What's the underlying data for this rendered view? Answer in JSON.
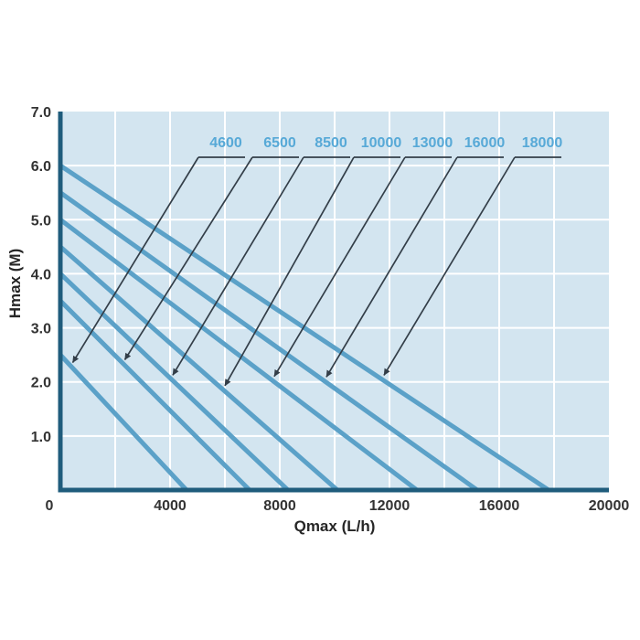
{
  "page": {
    "background": "#ffffff"
  },
  "chart_data": {
    "type": "line",
    "title": "",
    "xlabel": "Qmax (L/h)",
    "ylabel": "Hmax (M)",
    "xlim": [
      0,
      20000
    ],
    "ylim": [
      0,
      7
    ],
    "grid": {
      "x_step": 2000,
      "y_step": 1,
      "color": "#ffffff",
      "visible": true
    },
    "legend_position": "labels-with-arrows-above-curves",
    "x_ticks": [
      {
        "value": 0,
        "label": "0"
      },
      {
        "value": 4000,
        "label": "4000"
      },
      {
        "value": 8000,
        "label": "8000"
      },
      {
        "value": 12000,
        "label": "12000"
      },
      {
        "value": 16000,
        "label": "16000"
      },
      {
        "value": 20000,
        "label": "20000"
      }
    ],
    "y_ticks": [
      {
        "value": 7,
        "label": "7.0"
      },
      {
        "value": 6,
        "label": "6.0"
      },
      {
        "value": 5,
        "label": "5.0"
      },
      {
        "value": 4,
        "label": "4.0"
      },
      {
        "value": 3,
        "label": "3.0"
      },
      {
        "value": 2,
        "label": "2.0"
      },
      {
        "value": 1,
        "label": "1.0"
      }
    ],
    "series": [
      {
        "name": "4600",
        "hmax_m": 2.5,
        "qmax_lh": 4600,
        "points": [
          [
            0,
            2.5
          ],
          [
            4600,
            0
          ]
        ],
        "label_cx": 247,
        "arrow_tip_q": 450
      },
      {
        "name": "6500",
        "hmax_m": 3.5,
        "qmax_lh": 6900,
        "points": [
          [
            0,
            3.5
          ],
          [
            6900,
            0
          ]
        ],
        "label_cx": 306,
        "arrow_tip_q": 2350
      },
      {
        "name": "8500",
        "hmax_m": 4.0,
        "qmax_lh": 8300,
        "points": [
          [
            0,
            4.0
          ],
          [
            8300,
            0
          ]
        ],
        "label_cx": 362,
        "arrow_tip_q": 4100
      },
      {
        "name": "10000",
        "hmax_m": 4.5,
        "qmax_lh": 10100,
        "points": [
          [
            0,
            4.5
          ],
          [
            10100,
            0
          ]
        ],
        "label_cx": 417,
        "arrow_tip_q": 6000
      },
      {
        "name": "13000",
        "hmax_m": 5.0,
        "qmax_lh": 13000,
        "points": [
          [
            0,
            5.0
          ],
          [
            13000,
            0
          ]
        ],
        "label_cx": 473,
        "arrow_tip_q": 7800
      },
      {
        "name": "16000",
        "hmax_m": 5.5,
        "qmax_lh": 15200,
        "points": [
          [
            0,
            5.5
          ],
          [
            15200,
            0
          ]
        ],
        "label_cx": 530,
        "arrow_tip_q": 9700
      },
      {
        "name": "18000",
        "hmax_m": 6.0,
        "qmax_lh": 17800,
        "points": [
          [
            0,
            6.0
          ],
          [
            17800,
            0
          ]
        ],
        "label_cx": 593,
        "arrow_tip_q": 11800
      }
    ],
    "colors": {
      "plot_background": "#d3e5f0",
      "grid": "#ffffff",
      "curve": "#5ba1c8",
      "axis": "#1f5c7c",
      "leader": "#333e48",
      "series_label": "#57a9d7",
      "tick_text": "#333333",
      "axis_title_text": "#262626"
    }
  }
}
